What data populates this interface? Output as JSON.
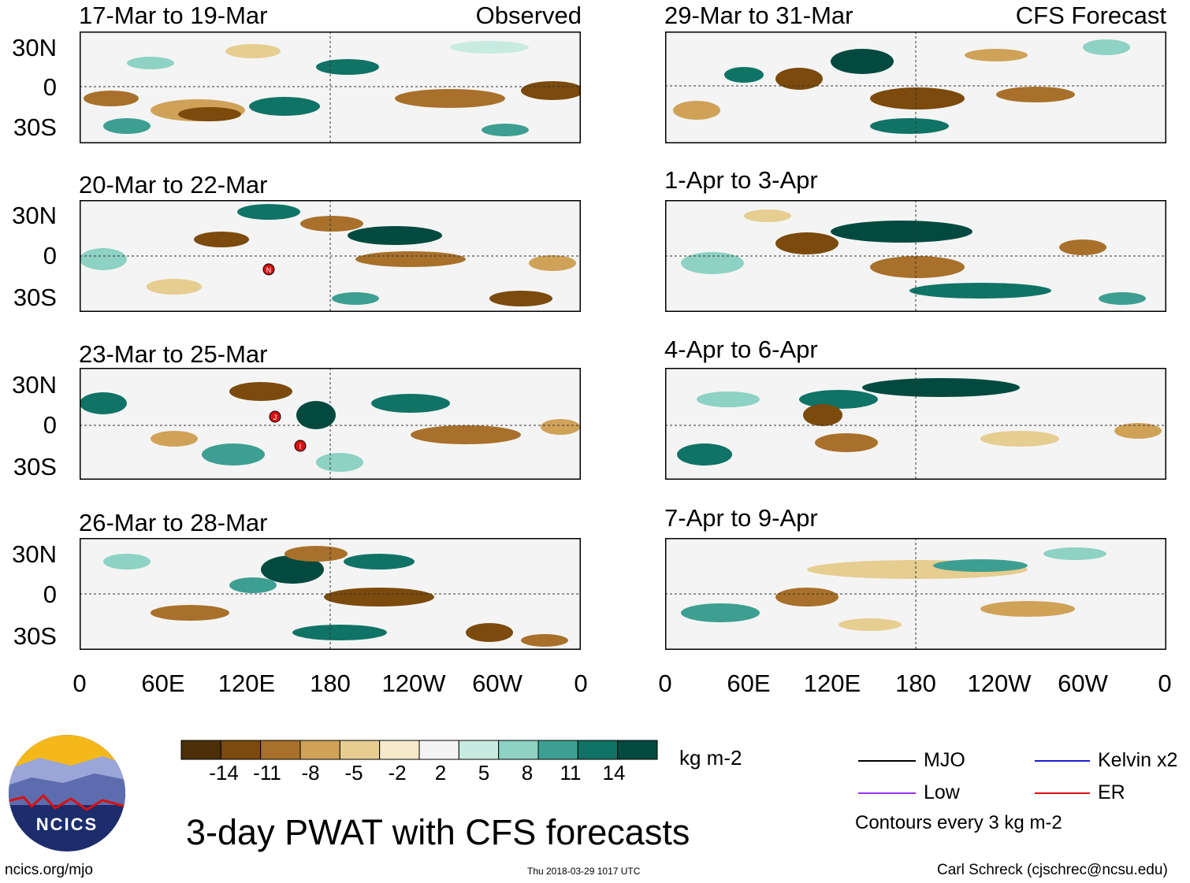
{
  "figure": {
    "title": "3-day PWAT with CFS forecasts",
    "units": "kg m-2",
    "site_url": "ncics.org/mjo",
    "timestamp": "Thu 2018-03-29 1017 UTC",
    "credit": "Carl Schreck (cjschrec@ncsu.edu)",
    "logo_text": "NCICS"
  },
  "columns": {
    "left_tag": "Observed",
    "right_tag": "CFS Forecast"
  },
  "panels_left": [
    {
      "title": "17-Mar to 19-Mar"
    },
    {
      "title": "20-Mar to 22-Mar"
    },
    {
      "title": "23-Mar to 25-Mar"
    },
    {
      "title": "26-Mar to 28-Mar"
    }
  ],
  "panels_right": [
    {
      "title": "29-Mar to 31-Mar"
    },
    {
      "title": "1-Apr to 3-Apr"
    },
    {
      "title": "4-Apr to 6-Apr"
    },
    {
      "title": "7-Apr to 9-Apr"
    }
  ],
  "lat_labels": [
    "30N",
    "0",
    "30S"
  ],
  "lon_labels": [
    "0",
    "60E",
    "120E",
    "180",
    "120W",
    "60W",
    "0"
  ],
  "colorbar": {
    "colors": [
      "#4b2f06",
      "#7b4a0c",
      "#a8702a",
      "#cfa258",
      "#e6cd90",
      "#f6eacb",
      "#f4f4f4",
      "#c8ebe1",
      "#8dd2c2",
      "#3d9f91",
      "#0f7366",
      "#024a3f"
    ],
    "labels": [
      "-14",
      "-11",
      "-8",
      "-5",
      "-2",
      "2",
      "5",
      "8",
      "11",
      "14"
    ]
  },
  "legend": {
    "items": [
      {
        "label": "MJO",
        "color": "#000000"
      },
      {
        "label": "Kelvin x2",
        "color": "#1a1ad6"
      },
      {
        "label": "Low",
        "color": "#9b30f0"
      },
      {
        "label": "ER",
        "color": "#d81010"
      }
    ],
    "note": "Contours every 3 kg m-2"
  },
  "storms": [
    {
      "panel": "20-Mar to 22-Mar",
      "symbol": "N"
    },
    {
      "panel": "23-Mar to 25-Mar",
      "symbol": "J"
    },
    {
      "panel": "23-Mar to 25-Mar",
      "symbol": "I"
    }
  ]
}
